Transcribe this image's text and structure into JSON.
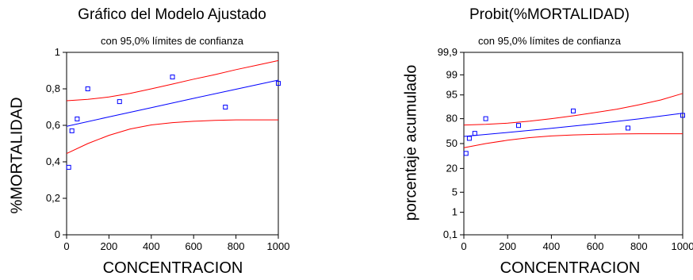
{
  "chart_data": [
    {
      "type": "line",
      "title": "Gráfico del Modelo Ajustado",
      "subtitle": "con  95,0% límites de confianza",
      "xlabel": "CONCENTRACION",
      "ylabel": "%MORTALIDAD",
      "xlim": [
        0,
        1000
      ],
      "ylim": [
        0,
        1
      ],
      "xticks": [
        "0",
        "200",
        "400",
        "600",
        "800",
        "1000"
      ],
      "yticks": [
        "0",
        "0,2",
        "0,4",
        "0,6",
        "0,8",
        "1"
      ],
      "points": {
        "x": [
          10,
          25,
          50,
          100,
          250,
          500,
          750,
          1000
        ],
        "y": [
          0.37,
          0.57,
          0.635,
          0.8,
          0.73,
          0.865,
          0.7,
          0.83
        ]
      },
      "series": [
        {
          "role": "fit",
          "color": "#0000ff",
          "x": [
            0,
            200,
            400,
            600,
            800,
            1000
          ],
          "y": [
            0.595,
            0.646,
            0.697,
            0.748,
            0.798,
            0.848
          ]
        },
        {
          "role": "upper",
          "color": "#ff0000",
          "x": [
            0,
            100,
            200,
            300,
            400,
            500,
            600,
            700,
            800,
            900,
            1000
          ],
          "y": [
            0.735,
            0.742,
            0.755,
            0.775,
            0.8,
            0.826,
            0.853,
            0.878,
            0.905,
            0.93,
            0.955
          ]
        },
        {
          "role": "lower",
          "color": "#ff0000",
          "x": [
            0,
            100,
            200,
            300,
            400,
            500,
            600,
            700,
            800,
            900,
            1000
          ],
          "y": [
            0.445,
            0.5,
            0.545,
            0.58,
            0.602,
            0.615,
            0.622,
            0.627,
            0.63,
            0.63,
            0.63
          ]
        }
      ]
    },
    {
      "type": "line",
      "title": "Probit(%MORTALIDAD)",
      "subtitle": "con  95,0% límites de confianza",
      "xlabel": "CONCENTRACION",
      "ylabel": "porcentaje acumulado",
      "xlim": [
        0,
        1000
      ],
      "yscale": "probit",
      "ylim": [
        0.1,
        99.9
      ],
      "xticks": [
        "0",
        "200",
        "400",
        "600",
        "800",
        "1000"
      ],
      "yticks": [
        "0,1",
        "1",
        "5",
        "20",
        "50",
        "80",
        "95",
        "99",
        "99,9"
      ],
      "points": {
        "x": [
          10,
          25,
          50,
          100,
          250,
          500,
          750,
          1000
        ],
        "y": [
          37,
          57,
          63.5,
          80,
          73,
          86.5,
          70,
          83
        ]
      },
      "series": [
        {
          "role": "fit",
          "color": "#0000ff",
          "x": [
            0,
            200,
            400,
            600,
            800,
            1000
          ],
          "y": [
            59.5,
            64.6,
            69.7,
            74.8,
            79.8,
            84.8
          ]
        },
        {
          "role": "upper",
          "color": "#ff0000",
          "x": [
            0,
            100,
            200,
            300,
            400,
            500,
            600,
            700,
            800,
            900,
            1000
          ],
          "y": [
            73.5,
            74.2,
            75.5,
            77.5,
            80,
            82.6,
            85.3,
            87.8,
            90.5,
            93,
            95.5
          ]
        },
        {
          "role": "lower",
          "color": "#ff0000",
          "x": [
            0,
            100,
            200,
            300,
            400,
            500,
            600,
            700,
            800,
            900,
            1000
          ],
          "y": [
            44.5,
            50,
            54.5,
            58,
            60.2,
            61.5,
            62.2,
            62.7,
            63,
            63,
            63
          ]
        }
      ]
    }
  ]
}
